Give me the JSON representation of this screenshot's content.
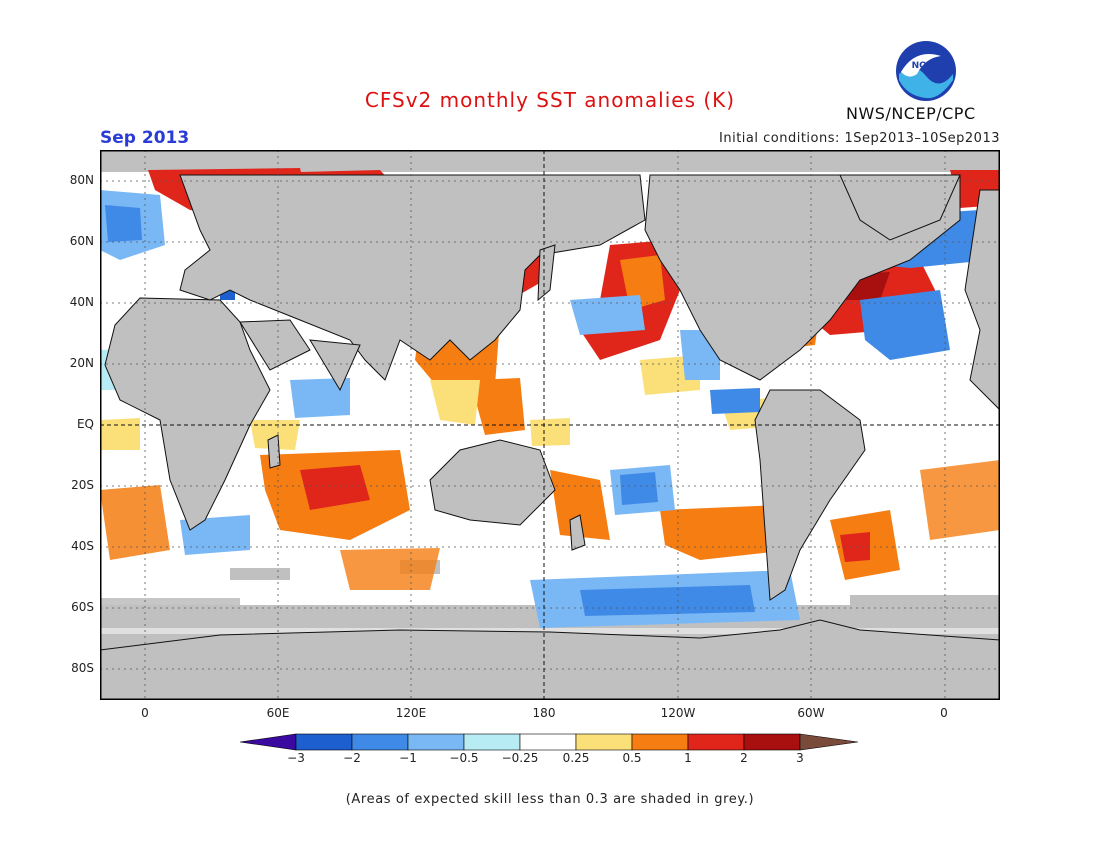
{
  "header": {
    "title": "CFSv2 monthly SST anomalies (K)",
    "month": "Sep 2013",
    "initial_conditions": "Initial conditions: 1Sep2013–10Sep2013",
    "agency": "NWS/NCEP/CPC",
    "logo_text": "NOAA"
  },
  "map": {
    "lat_labels": [
      "80N",
      "60N",
      "40N",
      "20N",
      "EQ",
      "20S",
      "40S",
      "60S",
      "80S"
    ],
    "lon_labels": [
      "0",
      "60E",
      "120E",
      "180",
      "120W",
      "60W",
      "0"
    ],
    "colors": {
      "land": "#c0c0c0",
      "low_skill": "#c0c0c0",
      "ocean": "#ffffff"
    }
  },
  "colorbar": {
    "labels": [
      "−3",
      "−2",
      "−1",
      "−0.5",
      "−0.25",
      "0.25",
      "0.5",
      "1",
      "2",
      "3"
    ],
    "colors": [
      "#3a0aa0",
      "#1e5fcf",
      "#3f8ae6",
      "#7ab8f5",
      "#b8ecf5",
      "#ffffff",
      "#fbe07a",
      "#f57d12",
      "#e0261b",
      "#a80f0f",
      "#7a4a3a"
    ]
  },
  "footnote": "(Areas of expected skill less than 0.3 are shaded in grey.)"
}
